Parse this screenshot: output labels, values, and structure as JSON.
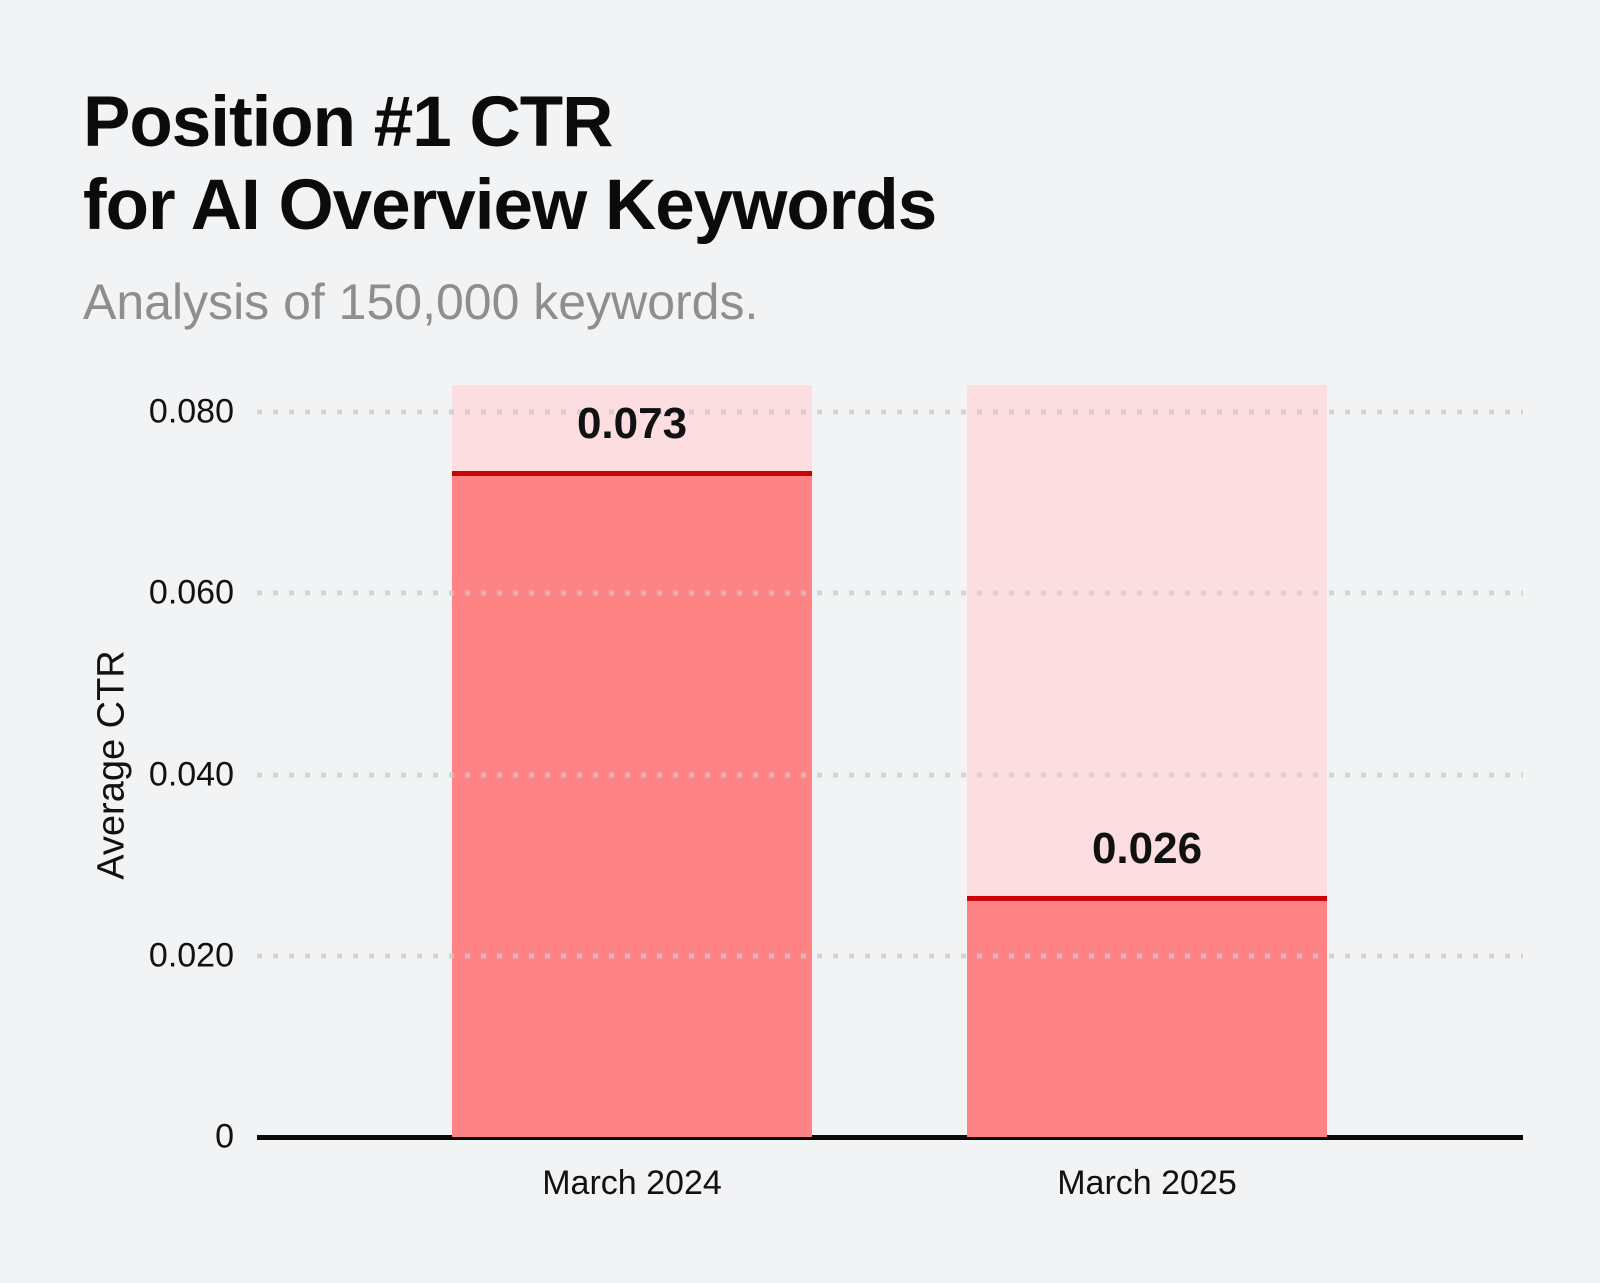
{
  "title": {
    "line1": "Position #1 CTR",
    "line2": "for AI Overview Keywords"
  },
  "subtitle": "Analysis of 150,000 keywords.",
  "y_axis_title": "Average CTR",
  "bars": [
    {
      "label": "March 2024",
      "value": 0.073,
      "value_label": "0.073"
    },
    {
      "label": "March 2025",
      "value": 0.026,
      "value_label": "0.026"
    }
  ],
  "chart_data": {
    "type": "bar",
    "title": "Position #1 CTR for AI Overview Keywords",
    "subtitle": "Analysis of 150,000 keywords.",
    "categories": [
      "March 2024",
      "March 2025"
    ],
    "series": [
      {
        "name": "Average CTR",
        "values": [
          0.073,
          0.026
        ]
      }
    ],
    "value_labels": [
      "0.073",
      "0.026"
    ],
    "xlabel": "",
    "ylabel": "Average CTR",
    "ylim": [
      0,
      0.083
    ],
    "yticks": [
      {
        "label": "0",
        "value": 0
      },
      {
        "label": "0.020",
        "value": 0.02
      },
      {
        "label": "0.040",
        "value": 0.04
      },
      {
        "label": "0.060",
        "value": 0.06
      },
      {
        "label": "0.080",
        "value": 0.08
      }
    ],
    "grid": "horizontal-dotted",
    "legend": "none",
    "bar_style": "full-height pink track with salmon fill and dark-red marker line at value"
  },
  "colors": {
    "background": "#f2f3f5",
    "bar_fill": "#fd8384",
    "bar_track": "#fcdee0",
    "marker_line": "#cc0307",
    "axis_line": "#0a0a0a",
    "grid_dot": "#c9c9c9",
    "title_text": "#0b0b0b",
    "subtitle_text": "#8e8e8e",
    "label_text": "#111111"
  }
}
